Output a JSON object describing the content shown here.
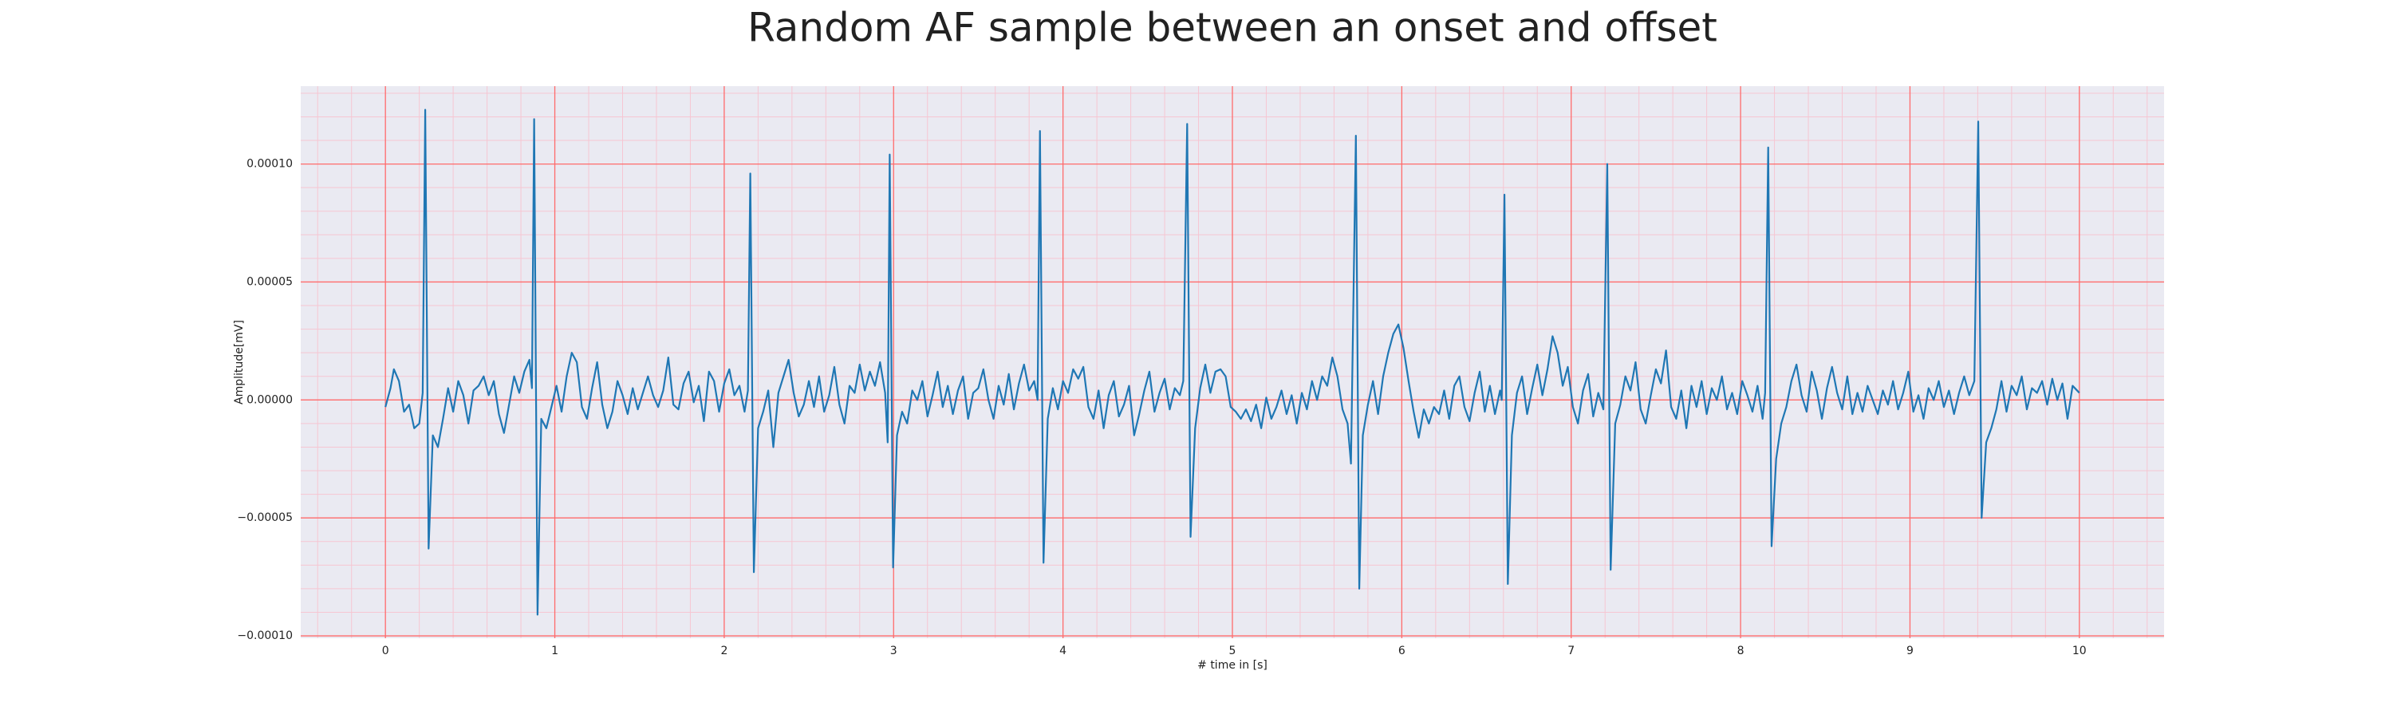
{
  "chart_data": {
    "type": "line",
    "title": "Random AF sample between an onset and offset",
    "x_label": "# time in [s]",
    "y_label": "Amplitude[mV]",
    "color": "#1f77b4",
    "grid": true,
    "grid_color": "#ff6b6b",
    "minor_grid": true,
    "minor_grid_color": "#f6c6d2",
    "background": "#eaeaf2",
    "xlim": [
      -0.5,
      10.5
    ],
    "ylim": [
      -0.000101,
      0.000133
    ],
    "xticks": [
      0,
      1,
      2,
      3,
      4,
      5,
      6,
      7,
      8,
      9,
      10
    ],
    "yticks": [
      {
        "value": -0.0001,
        "label": "−0.00010"
      },
      {
        "value": -5e-05,
        "label": "−0.00005"
      },
      {
        "value": 0,
        "label": "0.00000"
      },
      {
        "value": 5e-05,
        "label": "0.00005"
      },
      {
        "value": 0.0001,
        "label": "0.00010"
      }
    ],
    "x": [
      0,
      0.03,
      0.05,
      0.08,
      0.11,
      0.14,
      0.17,
      0.2,
      0.22,
      0.235,
      0.255,
      0.28,
      0.31,
      0.34,
      0.37,
      0.4,
      0.43,
      0.46,
      0.49,
      0.52,
      0.55,
      0.58,
      0.61,
      0.64,
      0.67,
      0.7,
      0.73,
      0.76,
      0.79,
      0.82,
      0.85,
      0.865,
      0.878,
      0.898,
      0.92,
      0.95,
      0.98,
      1.01,
      1.04,
      1.07,
      1.1,
      1.13,
      1.16,
      1.19,
      1.22,
      1.25,
      1.28,
      1.31,
      1.34,
      1.37,
      1.4,
      1.43,
      1.46,
      1.49,
      1.52,
      1.55,
      1.58,
      1.61,
      1.64,
      1.67,
      1.7,
      1.73,
      1.76,
      1.79,
      1.82,
      1.85,
      1.88,
      1.91,
      1.94,
      1.97,
      2,
      2.03,
      2.06,
      2.09,
      2.12,
      2.14,
      2.154,
      2.175,
      2.2,
      2.23,
      2.26,
      2.29,
      2.32,
      2.35,
      2.38,
      2.41,
      2.44,
      2.47,
      2.5,
      2.53,
      2.56,
      2.59,
      2.62,
      2.65,
      2.68,
      2.71,
      2.74,
      2.77,
      2.8,
      2.83,
      2.86,
      2.89,
      2.92,
      2.95,
      2.965,
      2.977,
      2.997,
      3.02,
      3.05,
      3.08,
      3.11,
      3.14,
      3.17,
      3.2,
      3.23,
      3.26,
      3.29,
      3.32,
      3.35,
      3.38,
      3.41,
      3.44,
      3.47,
      3.5,
      3.53,
      3.56,
      3.59,
      3.62,
      3.65,
      3.68,
      3.71,
      3.74,
      3.77,
      3.8,
      3.83,
      3.85,
      3.864,
      3.885,
      3.91,
      3.94,
      3.97,
      4,
      4.03,
      4.06,
      4.09,
      4.12,
      4.15,
      4.18,
      4.21,
      4.24,
      4.27,
      4.3,
      4.33,
      4.36,
      4.39,
      4.42,
      4.45,
      4.48,
      4.51,
      4.54,
      4.57,
      4.6,
      4.63,
      4.66,
      4.69,
      4.71,
      4.733,
      4.753,
      4.78,
      4.81,
      4.84,
      4.87,
      4.9,
      4.93,
      4.96,
      4.99,
      5.02,
      5.05,
      5.08,
      5.11,
      5.14,
      5.17,
      5.2,
      5.23,
      5.26,
      5.29,
      5.32,
      5.35,
      5.38,
      5.41,
      5.44,
      5.47,
      5.5,
      5.53,
      5.56,
      5.59,
      5.62,
      5.65,
      5.68,
      5.7,
      5.729,
      5.749,
      5.77,
      5.8,
      5.83,
      5.86,
      5.89,
      5.92,
      5.95,
      5.98,
      6.01,
      6.04,
      6.07,
      6.1,
      6.13,
      6.16,
      6.19,
      6.22,
      6.25,
      6.28,
      6.31,
      6.34,
      6.37,
      6.4,
      6.43,
      6.46,
      6.49,
      6.52,
      6.55,
      6.58,
      6.59,
      6.606,
      6.626,
      6.65,
      6.68,
      6.71,
      6.74,
      6.77,
      6.8,
      6.83,
      6.86,
      6.89,
      6.92,
      6.95,
      6.98,
      7.01,
      7.04,
      7.07,
      7.1,
      7.13,
      7.16,
      7.19,
      7.213,
      7.233,
      7.26,
      7.29,
      7.32,
      7.35,
      7.38,
      7.41,
      7.44,
      7.47,
      7.5,
      7.53,
      7.56,
      7.59,
      7.62,
      7.65,
      7.68,
      7.71,
      7.74,
      7.77,
      7.8,
      7.83,
      7.86,
      7.89,
      7.92,
      7.95,
      7.98,
      8.01,
      8.04,
      8.07,
      8.1,
      8.13,
      8.145,
      8.163,
      8.183,
      8.21,
      8.24,
      8.27,
      8.3,
      8.33,
      8.36,
      8.39,
      8.42,
      8.45,
      8.48,
      8.51,
      8.54,
      8.57,
      8.6,
      8.63,
      8.66,
      8.69,
      8.72,
      8.75,
      8.78,
      8.81,
      8.84,
      8.87,
      8.9,
      8.93,
      8.96,
      8.99,
      9.02,
      9.05,
      9.08,
      9.11,
      9.14,
      9.17,
      9.2,
      9.23,
      9.26,
      9.29,
      9.32,
      9.35,
      9.38,
      9.403,
      9.423,
      9.45,
      9.48,
      9.51,
      9.54,
      9.57,
      9.6,
      9.63,
      9.66,
      9.69,
      9.72,
      9.75,
      9.78,
      9.81,
      9.84,
      9.87,
      9.9,
      9.93,
      9.96,
      10
    ],
    "values": [
      -3e-06,
      5e-06,
      1.3e-05,
      8e-06,
      -5e-06,
      -2e-06,
      -1.2e-05,
      -1e-05,
      3e-06,
      0.000123,
      -6.3e-05,
      -1.5e-05,
      -2e-05,
      -8e-06,
      5e-06,
      -5e-06,
      8e-06,
      2e-06,
      -1e-05,
      4e-06,
      6e-06,
      1e-05,
      2e-06,
      8e-06,
      -6e-06,
      -1.4e-05,
      -2e-06,
      1e-05,
      3e-06,
      1.2e-05,
      1.7e-05,
      5e-06,
      0.000119,
      -9.1e-05,
      -8e-06,
      -1.2e-05,
      -3e-06,
      6e-06,
      -5e-06,
      1e-05,
      2e-05,
      1.6e-05,
      -3e-06,
      -8e-06,
      5e-06,
      1.6e-05,
      -2e-06,
      -1.2e-05,
      -5e-06,
      8e-06,
      2e-06,
      -6e-06,
      5e-06,
      -4e-06,
      3e-06,
      1e-05,
      2e-06,
      -3e-06,
      4e-06,
      1.8e-05,
      -2e-06,
      -4e-06,
      7e-06,
      1.2e-05,
      -1e-06,
      6e-06,
      -9e-06,
      1.2e-05,
      8e-06,
      -5e-06,
      7e-06,
      1.3e-05,
      2e-06,
      6e-06,
      -5e-06,
      4e-06,
      9.6e-05,
      -7.3e-05,
      -1.2e-05,
      -5e-06,
      4e-06,
      -2e-05,
      3e-06,
      1e-05,
      1.7e-05,
      3e-06,
      -7e-06,
      -2e-06,
      8e-06,
      -3e-06,
      1e-05,
      -5e-06,
      2e-06,
      1.4e-05,
      -2e-06,
      -1e-05,
      6e-06,
      3e-06,
      1.5e-05,
      4e-06,
      1.2e-05,
      6e-06,
      1.6e-05,
      3e-06,
      -1.8e-05,
      0.000104,
      -7.1e-05,
      -1.5e-05,
      -5e-06,
      -1e-05,
      4e-06,
      0,
      8e-06,
      -7e-06,
      2e-06,
      1.2e-05,
      -3e-06,
      6e-06,
      -6e-06,
      4e-06,
      1e-05,
      -8e-06,
      3e-06,
      5e-06,
      1.3e-05,
      0,
      -8e-06,
      6e-06,
      -2e-06,
      1.1e-05,
      -4e-06,
      7e-06,
      1.5e-05,
      4e-06,
      8e-06,
      0,
      0.000114,
      -6.9e-05,
      -8e-06,
      5e-06,
      -4e-06,
      8e-06,
      3e-06,
      1.3e-05,
      9e-06,
      1.4e-05,
      -3e-06,
      -8e-06,
      4e-06,
      -1.2e-05,
      2e-06,
      8e-06,
      -7e-06,
      -2e-06,
      6e-06,
      -1.5e-05,
      -6e-06,
      4e-06,
      1.2e-05,
      -5e-06,
      3e-06,
      9e-06,
      -4e-06,
      5e-06,
      2e-06,
      8e-06,
      0.000117,
      -5.8e-05,
      -1.2e-05,
      5e-06,
      1.5e-05,
      3e-06,
      1.2e-05,
      1.3e-05,
      1e-05,
      -3e-06,
      -5e-06,
      -8e-06,
      -4e-06,
      -9e-06,
      -2e-06,
      -1.2e-05,
      1e-06,
      -8e-06,
      -3e-06,
      4e-06,
      -6e-06,
      2e-06,
      -1e-05,
      3e-06,
      -4e-06,
      8e-06,
      0,
      1e-05,
      6e-06,
      1.8e-05,
      1e-05,
      -4e-06,
      -1e-05,
      -2.7e-05,
      0.000112,
      -8e-05,
      -1.5e-05,
      -2e-06,
      8e-06,
      -6e-06,
      1e-05,
      2e-05,
      2.8e-05,
      3.2e-05,
      2.2e-05,
      8e-06,
      -5e-06,
      -1.6e-05,
      -4e-06,
      -1e-05,
      -3e-06,
      -6e-06,
      4e-06,
      -8e-06,
      6e-06,
      1e-05,
      -3e-06,
      -9e-06,
      3e-06,
      1.2e-05,
      -5e-06,
      6e-06,
      -6e-06,
      4e-06,
      0,
      8.7e-05,
      -7.8e-05,
      -1.5e-05,
      3e-06,
      1e-05,
      -6e-06,
      5e-06,
      1.5e-05,
      2e-06,
      1.3e-05,
      2.7e-05,
      2e-05,
      6e-06,
      1.4e-05,
      -3e-06,
      -1e-05,
      4e-06,
      1.1e-05,
      -7e-06,
      3e-06,
      -4e-06,
      0.0001,
      -7.2e-05,
      -1e-05,
      -2e-06,
      1e-05,
      4e-06,
      1.6e-05,
      -4e-06,
      -1e-05,
      2e-06,
      1.3e-05,
      7e-06,
      2.1e-05,
      -3e-06,
      -8e-06,
      4e-06,
      -1.2e-05,
      6e-06,
      -3e-06,
      8e-06,
      -6e-06,
      5e-06,
      0,
      1e-05,
      -4e-06,
      3e-06,
      -6e-06,
      8e-06,
      2e-06,
      -5e-06,
      6e-06,
      -8e-06,
      3e-06,
      0.000107,
      -6.2e-05,
      -2.5e-05,
      -1e-05,
      -3e-06,
      8e-06,
      1.5e-05,
      2e-06,
      -5e-06,
      1.2e-05,
      4e-06,
      -8e-06,
      5e-06,
      1.4e-05,
      3e-06,
      -4e-06,
      1e-05,
      -6e-06,
      3e-06,
      -5e-06,
      6e-06,
      0,
      -6e-06,
      4e-06,
      -2e-06,
      8e-06,
      -4e-06,
      3e-06,
      1.2e-05,
      -5e-06,
      2e-06,
      -8e-06,
      5e-06,
      0,
      8e-06,
      -3e-06,
      4e-06,
      -6e-06,
      3e-06,
      1e-05,
      2e-06,
      8e-06,
      0.000118,
      -5e-05,
      -1.8e-05,
      -1.2e-05,
      -4e-06,
      8e-06,
      -5e-06,
      6e-06,
      2e-06,
      1e-05,
      -4e-06,
      5e-06,
      3e-06,
      8e-06,
      -2e-06,
      9e-06,
      0,
      7e-06,
      -8e-06,
      6e-06,
      3e-06
    ]
  }
}
